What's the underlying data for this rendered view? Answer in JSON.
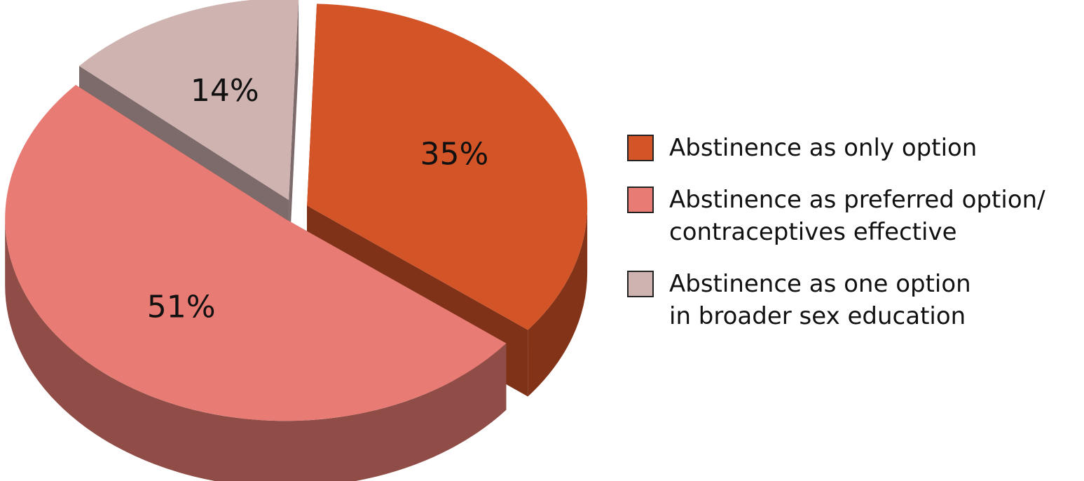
{
  "chart_data": {
    "type": "pie",
    "categories": [
      "Abstinence as only option",
      "Abstinence as preferred option/\ncontraceptives effective",
      "Abstinence as one option\nin broader sex education"
    ],
    "values": [
      35,
      51,
      14
    ],
    "value_labels": [
      "35%",
      "51%",
      "14%"
    ],
    "colors": [
      "#d35427",
      "#e87b73",
      "#cfb3b0"
    ],
    "legend": "right"
  }
}
